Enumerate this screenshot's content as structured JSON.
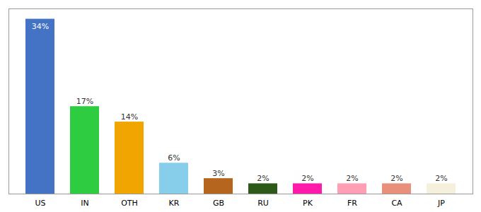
{
  "chart_data": {
    "type": "bar",
    "categories": [
      "US",
      "IN",
      "OTH",
      "KR",
      "GB",
      "RU",
      "PK",
      "FR",
      "CA",
      "JP"
    ],
    "values": [
      34,
      17,
      14,
      6,
      3,
      2,
      2,
      2,
      2,
      2
    ],
    "value_labels": [
      "34%",
      "17%",
      "14%",
      "6%",
      "3%",
      "2%",
      "2%",
      "2%",
      "2%",
      "2%"
    ],
    "colors": [
      "#4472c4",
      "#2ecc40",
      "#f0a500",
      "#87ceeb",
      "#b5651d",
      "#2d5a1b",
      "#ff1aaa",
      "#ff9eb5",
      "#e8907a",
      "#f5f0dc"
    ],
    "ylim": [
      0,
      36
    ],
    "data_labels": true,
    "tick_labels": "x",
    "grid": false
  }
}
